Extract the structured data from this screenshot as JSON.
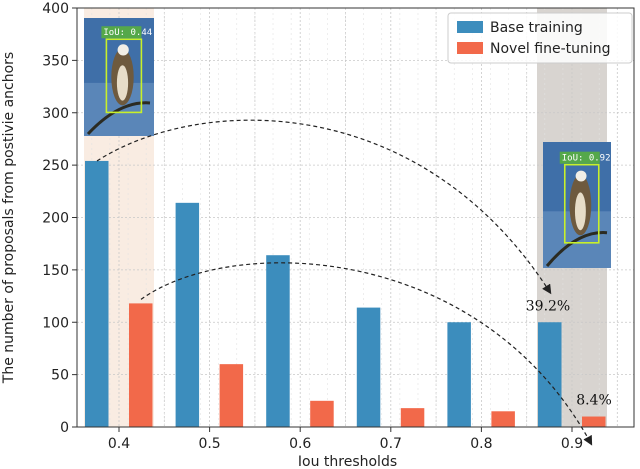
{
  "chart_data": {
    "type": "bar",
    "categories": [
      "0.4",
      "0.5",
      "0.6",
      "0.7",
      "0.8",
      "0.9"
    ],
    "series": [
      {
        "name": "Base training",
        "values": [
          254,
          214,
          164,
          114,
          100,
          100
        ],
        "color": "#3c8dbd"
      },
      {
        "name": "Novel fine-tuning",
        "values": [
          118,
          60,
          25,
          18,
          15,
          10
        ],
        "color": "#f2694a"
      }
    ],
    "xlabel": "Iou thresholds",
    "ylabel": "The number of proposals from postivie anchors",
    "ylim": [
      0,
      400
    ],
    "yticks": [
      0,
      50,
      100,
      150,
      200,
      250,
      300,
      350,
      400
    ],
    "grid": true,
    "legend_position": "top-right",
    "highlight_columns": [
      "0.4",
      "0.9"
    ],
    "annotations": [
      {
        "text": "39.2%",
        "category": "0.9",
        "series": "Base training"
      },
      {
        "text": "8.4%",
        "category": "0.9",
        "series": "Novel fine-tuning"
      }
    ],
    "image_tags": [
      {
        "text": "IoU: 0.44",
        "category": "0.4"
      },
      {
        "text": "IoU: 0.92",
        "category": "0.9"
      }
    ]
  }
}
